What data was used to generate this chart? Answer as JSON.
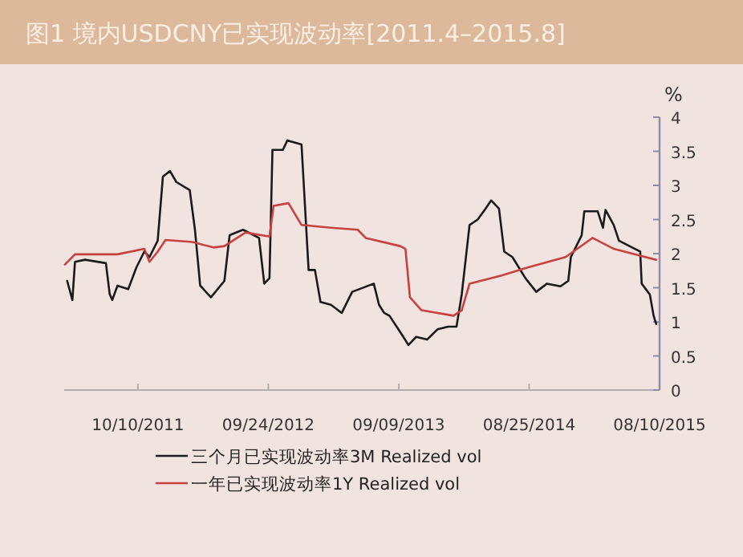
{
  "chart_data": {
    "type": "line",
    "title": "图1   境内USDCNY已实现波动率[2011.4–2015.8]",
    "ylabel": "%",
    "legend": "bottom",
    "xlim": [
      "2011-03-26",
      "2015-08-10"
    ],
    "xticks": [
      {
        "value": "2011-10-10",
        "label": "10/10/2011"
      },
      {
        "value": "2012-09-24",
        "label": "09/24/2012"
      },
      {
        "value": "2013-09-09",
        "label": "09/09/2013"
      },
      {
        "value": "2014-08-25",
        "label": "08/25/2014"
      },
      {
        "value": "2015-08-10",
        "label": "08/10/2015"
      }
    ],
    "ylim": [
      0,
      4
    ],
    "yticks": [
      0,
      0.5,
      1,
      1.5,
      2,
      2.5,
      3,
      3.5,
      4
    ],
    "series": [
      {
        "name": "三个月已实现波动率3M Realized vol",
        "color": "#1a1a1a",
        "x": [
          "2011-04-03",
          "2011-04-17",
          "2011-04-24",
          "2011-05-21",
          "2011-07-16",
          "2011-07-26",
          "2011-08-02",
          "2011-08-16",
          "2011-09-14",
          "2011-10-06",
          "2011-10-27",
          "2011-11-10",
          "2011-12-02",
          "2011-12-16",
          "2012-01-04",
          "2012-01-21",
          "2012-02-26",
          "2012-03-11",
          "2012-03-25",
          "2012-04-23",
          "2012-05-29",
          "2012-06-12",
          "2012-07-18",
          "2012-08-30",
          "2012-09-13",
          "2012-09-27",
          "2012-10-05",
          "2012-11-02",
          "2012-11-14",
          "2012-12-22",
          "2013-01-10",
          "2013-01-27",
          "2013-02-11",
          "2013-03-11",
          "2013-04-09",
          "2013-05-07",
          "2013-07-04",
          "2013-07-18",
          "2013-08-01",
          "2013-08-15",
          "2013-09-13",
          "2013-10-05",
          "2013-10-26",
          "2013-11-24",
          "2013-12-22",
          "2014-01-20",
          "2014-02-11",
          "2014-02-25",
          "2014-03-18",
          "2014-04-09",
          "2014-04-30",
          "2014-05-15",
          "2014-06-05",
          "2014-06-19",
          "2014-07-11",
          "2014-08-15",
          "2014-09-13",
          "2014-10-12",
          "2014-11-17",
          "2014-12-08",
          "2014-12-15",
          "2015-01-13",
          "2015-01-20",
          "2015-02-25",
          "2015-03-11",
          "2015-03-18",
          "2015-04-09",
          "2015-04-23",
          "2015-06-05",
          "2015-06-19",
          "2015-06-23",
          "2015-07-15",
          "2015-07-25",
          "2015-08-01"
        ],
        "values": [
          1.6,
          1.32,
          1.88,
          1.91,
          1.86,
          1.41,
          1.32,
          1.53,
          1.48,
          1.8,
          2.03,
          1.95,
          2.19,
          3.13,
          3.21,
          3.05,
          2.93,
          2.35,
          1.53,
          1.36,
          1.6,
          2.27,
          2.35,
          2.23,
          1.56,
          1.64,
          3.52,
          3.52,
          3.66,
          3.6,
          1.76,
          1.76,
          1.29,
          1.25,
          1.13,
          1.44,
          1.56,
          1.25,
          1.13,
          1.09,
          0.85,
          0.66,
          0.78,
          0.74,
          0.89,
          0.93,
          0.93,
          1.4,
          2.42,
          2.5,
          2.66,
          2.78,
          2.66,
          2.03,
          1.95,
          1.64,
          1.44,
          1.56,
          1.52,
          1.6,
          1.95,
          2.27,
          2.62,
          2.62,
          2.38,
          2.64,
          2.42,
          2.19,
          2.07,
          2.03,
          1.56,
          1.4,
          1.09,
          0.97
        ]
      },
      {
        "name": "一年已实现波动率1Y Realized vol",
        "color": "#c8413f",
        "x": [
          "2011-03-28",
          "2011-04-24",
          "2011-06-20",
          "2011-08-16",
          "2011-10-27",
          "2011-11-10",
          "2011-12-02",
          "2011-12-23",
          "2012-03-04",
          "2012-04-30",
          "2012-05-29",
          "2012-07-25",
          "2012-09-27",
          "2012-10-08",
          "2012-11-17",
          "2012-12-22",
          "2013-03-11",
          "2013-05-22",
          "2013-06-12",
          "2013-09-13",
          "2013-09-27",
          "2013-10-09",
          "2013-11-09",
          "2014-02-03",
          "2014-02-25",
          "2014-03-18",
          "2014-06-12",
          "2014-08-23",
          "2014-12-01",
          "2015-02-11",
          "2015-04-09",
          "2015-08-01"
        ],
        "values": [
          1.84,
          1.99,
          1.99,
          1.99,
          2.07,
          1.88,
          2.03,
          2.2,
          2.17,
          2.09,
          2.11,
          2.31,
          2.25,
          2.7,
          2.74,
          2.42,
          2.38,
          2.35,
          2.23,
          2.11,
          2.07,
          1.36,
          1.17,
          1.09,
          1.17,
          1.56,
          1.68,
          1.8,
          1.95,
          2.23,
          2.07,
          1.91
        ]
      }
    ]
  }
}
